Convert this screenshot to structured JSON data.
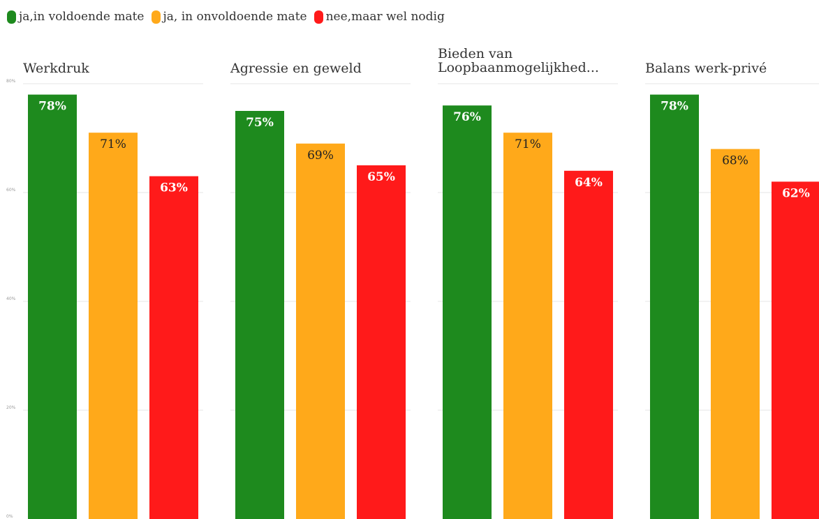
{
  "legend": [
    {
      "label": "ja,in voldoende mate",
      "color": "#1e8a1e"
    },
    {
      "label": "ja, in onvoldoende mate",
      "color": "#ffa91a"
    },
    {
      "label": "nee,maar wel nodig",
      "color": "#ff1a1a"
    }
  ],
  "chart_data": {
    "type": "bar",
    "layout": "small-multiples",
    "series_colors": [
      "#1e8a1e",
      "#ffa91a",
      "#ff1a1a"
    ],
    "series_names": [
      "ja,in voldoende mate",
      "ja, in onvoldoende mate",
      "nee,maar wel nodig"
    ],
    "ylim": [
      0,
      80
    ],
    "yticks": [
      0,
      20,
      40,
      60,
      80
    ],
    "ytick_labels": [
      "0%",
      "20%",
      "40%",
      "60%",
      "80%"
    ],
    "grid": true,
    "panels": [
      {
        "title_lines": [
          "Werkdruk"
        ],
        "values": [
          78,
          71,
          63
        ],
        "labels": [
          "78%",
          "71%",
          "63%"
        ]
      },
      {
        "title_lines": [
          "Agressie en geweld"
        ],
        "values": [
          75,
          69,
          65
        ],
        "labels": [
          "75%",
          "69%",
          "65%"
        ]
      },
      {
        "title_lines": [
          "Bieden van",
          "Loopbaanmogelijkhed..."
        ],
        "values": [
          76,
          71,
          64
        ],
        "labels": [
          "76%",
          "71%",
          "64%"
        ]
      },
      {
        "title_lines": [
          "Balans werk-privé"
        ],
        "values": [
          78,
          68,
          62
        ],
        "labels": [
          "78%",
          "68%",
          "62%"
        ]
      }
    ]
  }
}
